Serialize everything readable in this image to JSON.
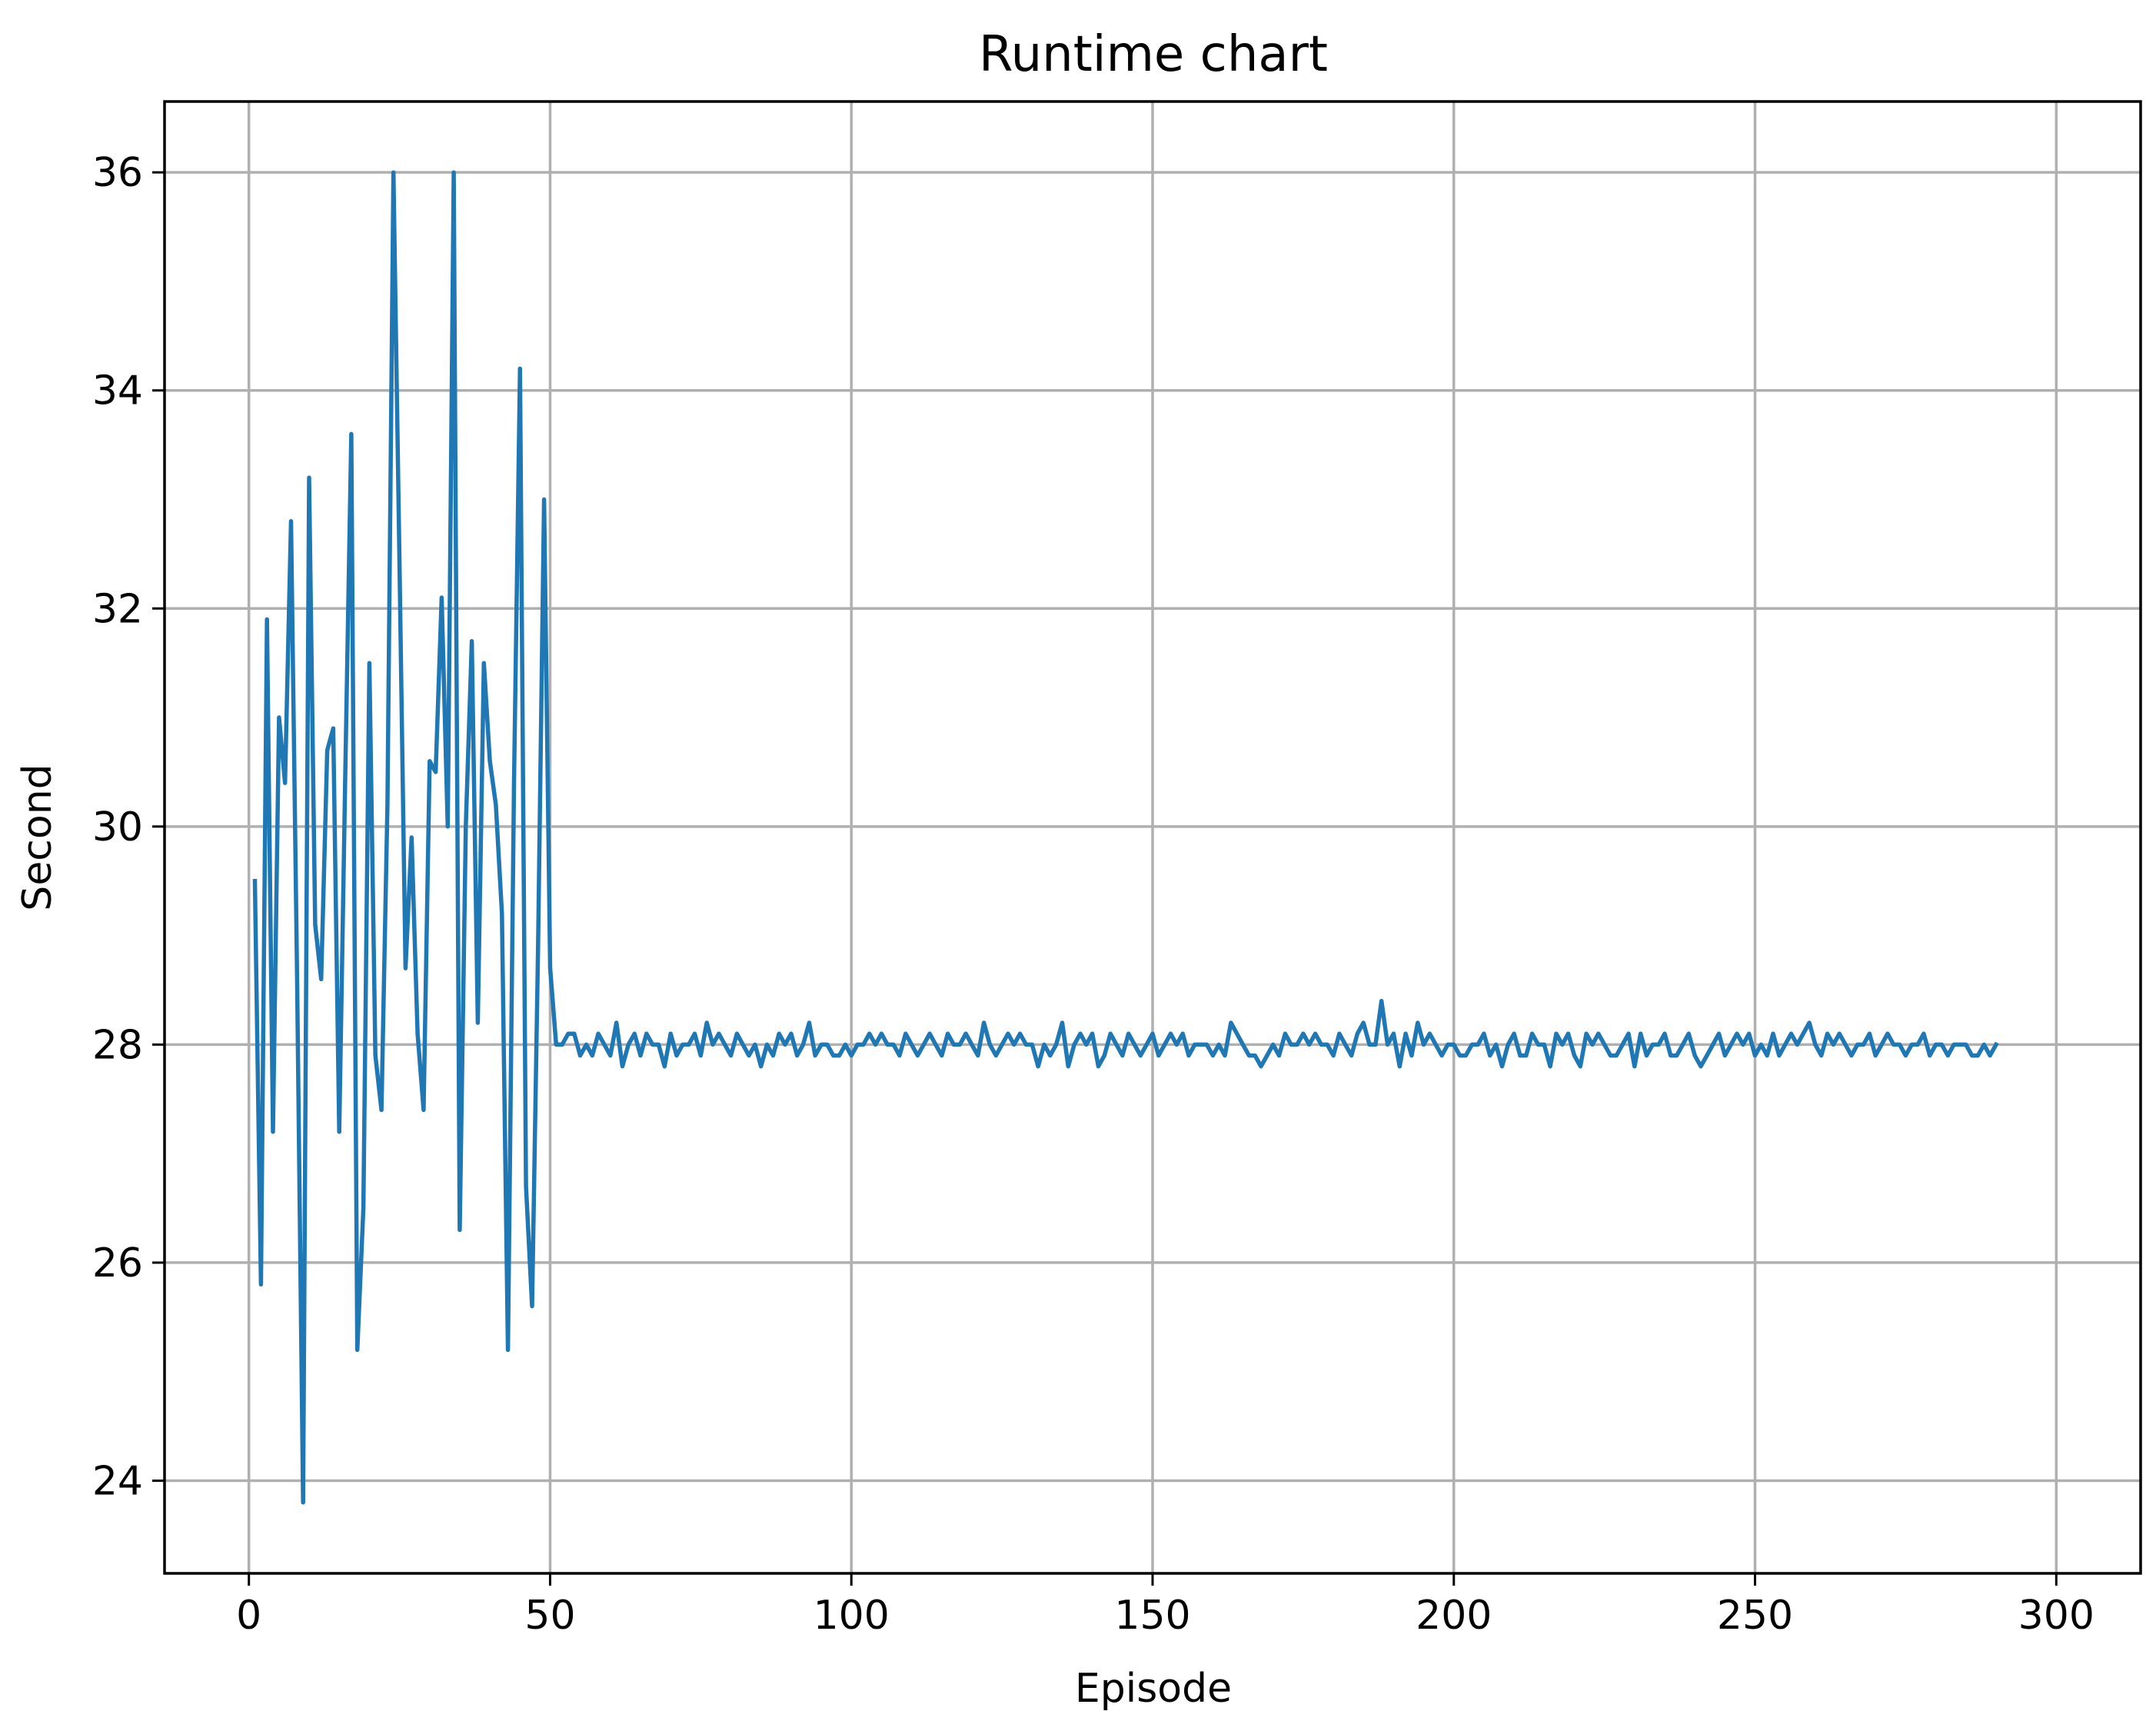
{
  "chart_data": {
    "type": "line",
    "title": "Runtime chart",
    "xlabel": "Episode",
    "ylabel": "Second",
    "xlim": [
      -14,
      314
    ],
    "ylim": [
      23.15,
      36.65
    ],
    "grid": true,
    "legend": "none",
    "xticks": [
      0,
      50,
      100,
      150,
      200,
      250,
      300
    ],
    "yticks": [
      24,
      26,
      28,
      30,
      32,
      34,
      36
    ],
    "colors": {
      "line": "#1f77b4",
      "grid": "#b0b0b0",
      "frame": "#000000"
    },
    "series": [
      {
        "x_start": 1,
        "values": [
          29.5,
          25.8,
          31.9,
          27.2,
          31.0,
          30.4,
          32.8,
          28.6,
          23.8,
          33.2,
          29.1,
          28.6,
          30.7,
          30.9,
          27.2,
          30.5,
          33.6,
          25.2,
          26.5,
          31.5,
          27.9,
          27.4,
          30.2,
          36.0,
          32.4,
          28.7,
          29.9,
          28.1,
          27.4,
          30.6,
          30.5,
          32.1,
          30.0,
          36.0,
          26.3,
          30.0,
          31.7,
          28.2,
          31.5,
          30.6,
          30.2,
          29.2,
          25.2,
          30.4,
          34.2,
          26.7,
          25.6,
          28.9,
          33.0,
          28.7,
          28.0,
          28.0,
          28.1,
          28.1,
          27.9,
          28.0,
          27.9,
          28.1,
          28.0,
          27.9,
          28.2,
          27.8,
          28.0,
          28.1,
          27.9,
          28.1,
          28.0,
          28.0,
          27.8,
          28.1,
          27.9,
          28.0,
          28.0,
          28.1,
          27.9,
          28.2,
          28.0,
          28.1,
          28.0,
          27.9,
          28.1,
          28.0,
          27.9,
          28.0,
          27.8,
          28.0,
          27.9,
          28.1,
          28.0,
          28.1,
          27.9,
          28.0,
          28.2,
          27.9,
          28.0,
          28.0,
          27.9,
          27.9,
          28.0,
          27.9,
          28.0,
          28.0,
          28.1,
          28.0,
          28.1,
          28.0,
          28.0,
          27.9,
          28.1,
          28.0,
          27.9,
          28.0,
          28.1,
          28.0,
          27.9,
          28.1,
          28.0,
          28.0,
          28.1,
          28.0,
          27.9,
          28.2,
          28.0,
          27.9,
          28.0,
          28.1,
          28.0,
          28.1,
          28.0,
          28.0,
          27.8,
          28.0,
          27.9,
          28.0,
          28.2,
          27.8,
          28.0,
          28.1,
          28.0,
          28.1,
          27.8,
          27.9,
          28.1,
          28.0,
          27.9,
          28.1,
          28.0,
          27.9,
          28.0,
          28.1,
          27.9,
          28.0,
          28.1,
          28.0,
          28.1,
          27.9,
          28.0,
          28.0,
          28.0,
          27.9,
          28.0,
          27.9,
          28.2,
          28.1,
          28.0,
          27.9,
          27.9,
          27.8,
          27.9,
          28.0,
          27.9,
          28.1,
          28.0,
          28.0,
          28.1,
          28.0,
          28.1,
          28.0,
          28.0,
          27.9,
          28.1,
          28.0,
          27.9,
          28.1,
          28.2,
          28.0,
          28.0,
          28.4,
          28.0,
          28.1,
          27.8,
          28.1,
          27.9,
          28.2,
          28.0,
          28.1,
          28.0,
          27.9,
          28.0,
          28.0,
          27.9,
          27.9,
          28.0,
          28.0,
          28.1,
          27.9,
          28.0,
          27.8,
          28.0,
          28.1,
          27.9,
          27.9,
          28.1,
          28.0,
          28.0,
          27.8,
          28.1,
          28.0,
          28.1,
          27.9,
          27.8,
          28.1,
          28.0,
          28.1,
          28.0,
          27.9,
          27.9,
          28.0,
          28.1,
          27.8,
          28.1,
          27.9,
          28.0,
          28.0,
          28.1,
          27.9,
          27.9,
          28.0,
          28.1,
          27.9,
          27.8,
          27.9,
          28.0,
          28.1,
          27.9,
          28.0,
          28.1,
          28.0,
          28.1,
          27.9,
          28.0,
          27.9,
          28.1,
          27.9,
          28.0,
          28.1,
          28.0,
          28.1,
          28.2,
          28.0,
          27.9,
          28.1,
          28.0,
          28.1,
          28.0,
          27.9,
          28.0,
          28.0,
          28.1,
          27.9,
          28.0,
          28.1,
          28.0,
          28.0,
          27.9,
          28.0,
          28.0,
          28.1,
          27.9,
          28.0,
          28.0,
          27.9,
          28.0,
          28.0,
          28.0,
          27.9,
          27.9,
          28.0,
          27.9,
          28.0
        ]
      }
    ]
  }
}
